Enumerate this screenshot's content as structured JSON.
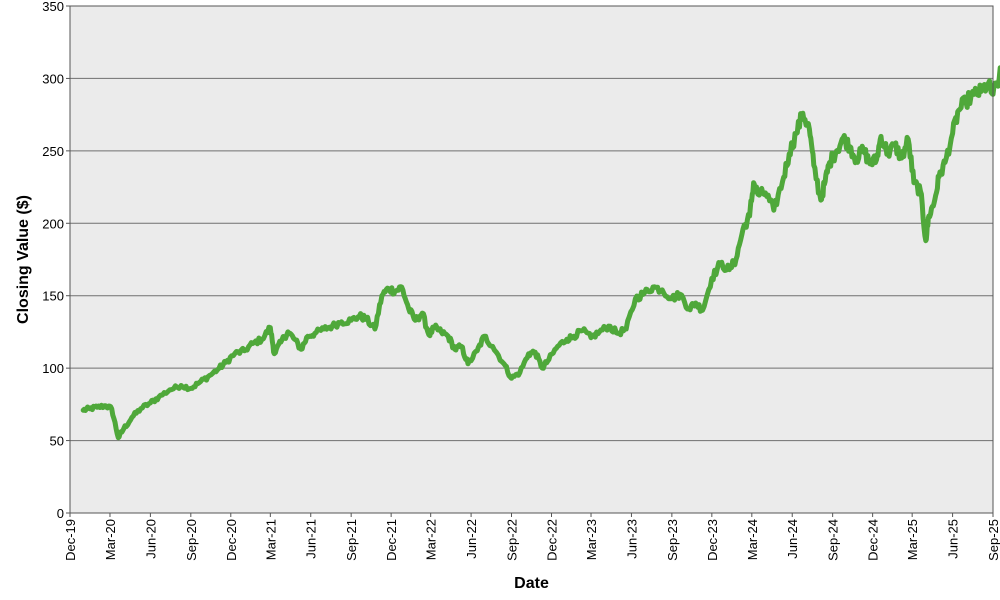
{
  "chart_data": {
    "type": "line",
    "title": "",
    "xlabel": "Date",
    "ylabel": "Closing Value ($)",
    "ylim": [
      0,
      350
    ],
    "yticks": [
      0,
      50,
      100,
      150,
      200,
      250,
      300,
      350
    ],
    "xlim": [
      "2019-12",
      "2025-09"
    ],
    "xticks": [
      "Dec-19",
      "Mar-20",
      "Jun-20",
      "Sep-20",
      "Dec-20",
      "Mar-21",
      "Jun-21",
      "Sep-21",
      "Dec-21",
      "Mar-22",
      "Jun-22",
      "Sep-22",
      "Dec-22",
      "Mar-23",
      "Jun-23",
      "Sep-23",
      "Dec-23",
      "Mar-24",
      "Jun-24",
      "Sep-24",
      "Dec-24",
      "Mar-25",
      "Jun-25",
      "Sep-25"
    ],
    "grid": "horizontal",
    "background_color": "#ebebeb",
    "line_color": "#4fa83a",
    "series": [
      {
        "x": [
          "2019-12-31",
          "2020-01-15",
          "2020-02-01",
          "2020-02-20",
          "2020-03-05",
          "2020-03-20",
          "2020-04-01",
          "2020-04-20",
          "2020-05-10",
          "2020-06-01",
          "2020-06-20",
          "2020-07-15",
          "2020-08-10",
          "2020-09-01",
          "2020-09-20",
          "2020-10-10",
          "2020-11-01",
          "2020-11-20",
          "2020-12-10",
          "2021-01-01",
          "2021-01-20",
          "2021-02-10",
          "2021-03-01",
          "2021-03-10",
          "2021-03-25",
          "2021-04-10",
          "2021-04-25",
          "2021-05-10",
          "2021-05-25",
          "2021-06-10",
          "2021-07-01",
          "2021-07-20",
          "2021-08-10",
          "2021-09-01",
          "2021-09-20",
          "2021-10-05",
          "2021-10-25",
          "2021-11-10",
          "2021-11-25",
          "2021-12-10",
          "2021-12-25",
          "2022-01-10",
          "2022-01-25",
          "2022-02-10",
          "2022-02-25",
          "2022-03-10",
          "2022-03-25",
          "2022-04-10",
          "2022-04-25",
          "2022-05-10",
          "2022-05-25",
          "2022-06-15",
          "2022-07-01",
          "2022-07-20",
          "2022-08-15",
          "2022-09-01",
          "2022-09-20",
          "2022-10-10",
          "2022-10-25",
          "2022-11-10",
          "2022-11-25",
          "2022-12-15",
          "2023-01-05",
          "2023-01-20",
          "2023-02-10",
          "2023-03-01",
          "2023-03-20",
          "2023-04-10",
          "2023-05-01",
          "2023-05-20",
          "2023-06-10",
          "2023-07-01",
          "2023-07-20",
          "2023-08-10",
          "2023-09-01",
          "2023-09-20",
          "2023-10-10",
          "2023-10-25",
          "2023-11-10",
          "2023-12-01",
          "2023-12-20",
          "2024-01-10",
          "2024-01-25",
          "2024-02-10",
          "2024-02-25",
          "2024-03-05",
          "2024-03-15",
          "2024-04-01",
          "2024-04-20",
          "2024-05-10",
          "2024-05-25",
          "2024-06-10",
          "2024-06-25",
          "2024-07-10",
          "2024-07-20",
          "2024-08-05",
          "2024-08-15",
          "2024-08-25",
          "2024-09-10",
          "2024-09-25",
          "2024-10-10",
          "2024-10-25",
          "2024-11-10",
          "2024-11-25",
          "2024-12-10",
          "2024-12-20",
          "2025-01-05",
          "2025-01-20",
          "2025-02-05",
          "2025-02-20",
          "2025-03-05",
          "2025-03-20",
          "2025-04-01",
          "2025-04-08",
          "2025-04-20",
          "2025-05-01",
          "2025-05-15",
          "2025-06-01",
          "2025-06-15",
          "2025-07-01",
          "2025-07-20",
          "2025-08-05",
          "2025-08-20",
          "2025-09-01",
          "2025-09-15",
          "2025-09-30"
        ],
        "y": [
          71,
          72,
          73,
          74,
          72,
          52,
          58,
          66,
          72,
          76,
          80,
          85,
          88,
          86,
          90,
          94,
          99,
          104,
          110,
          112,
          117,
          120,
          128,
          110,
          118,
          125,
          120,
          113,
          122,
          124,
          127,
          129,
          132,
          133,
          136,
          134,
          127,
          150,
          155,
          153,
          156,
          141,
          133,
          138,
          123,
          128,
          125,
          122,
          113,
          115,
          103,
          112,
          122,
          115,
          103,
          93,
          97,
          110,
          111,
          100,
          106,
          115,
          120,
          122,
          126,
          121,
          125,
          129,
          124,
          127,
          148,
          152,
          156,
          154,
          148,
          151,
          141,
          145,
          140,
          162,
          172,
          168,
          175,
          196,
          205,
          228,
          220,
          221,
          209,
          229,
          248,
          262,
          276,
          265,
          240,
          216,
          229,
          242,
          250,
          259,
          253,
          244,
          251,
          241,
          244,
          260,
          248,
          254,
          245,
          258,
          228,
          222,
          188,
          205,
          214,
          232,
          242,
          262,
          278,
          284,
          289,
          291,
          296,
          289,
          300,
          314
        ]
      }
    ]
  }
}
